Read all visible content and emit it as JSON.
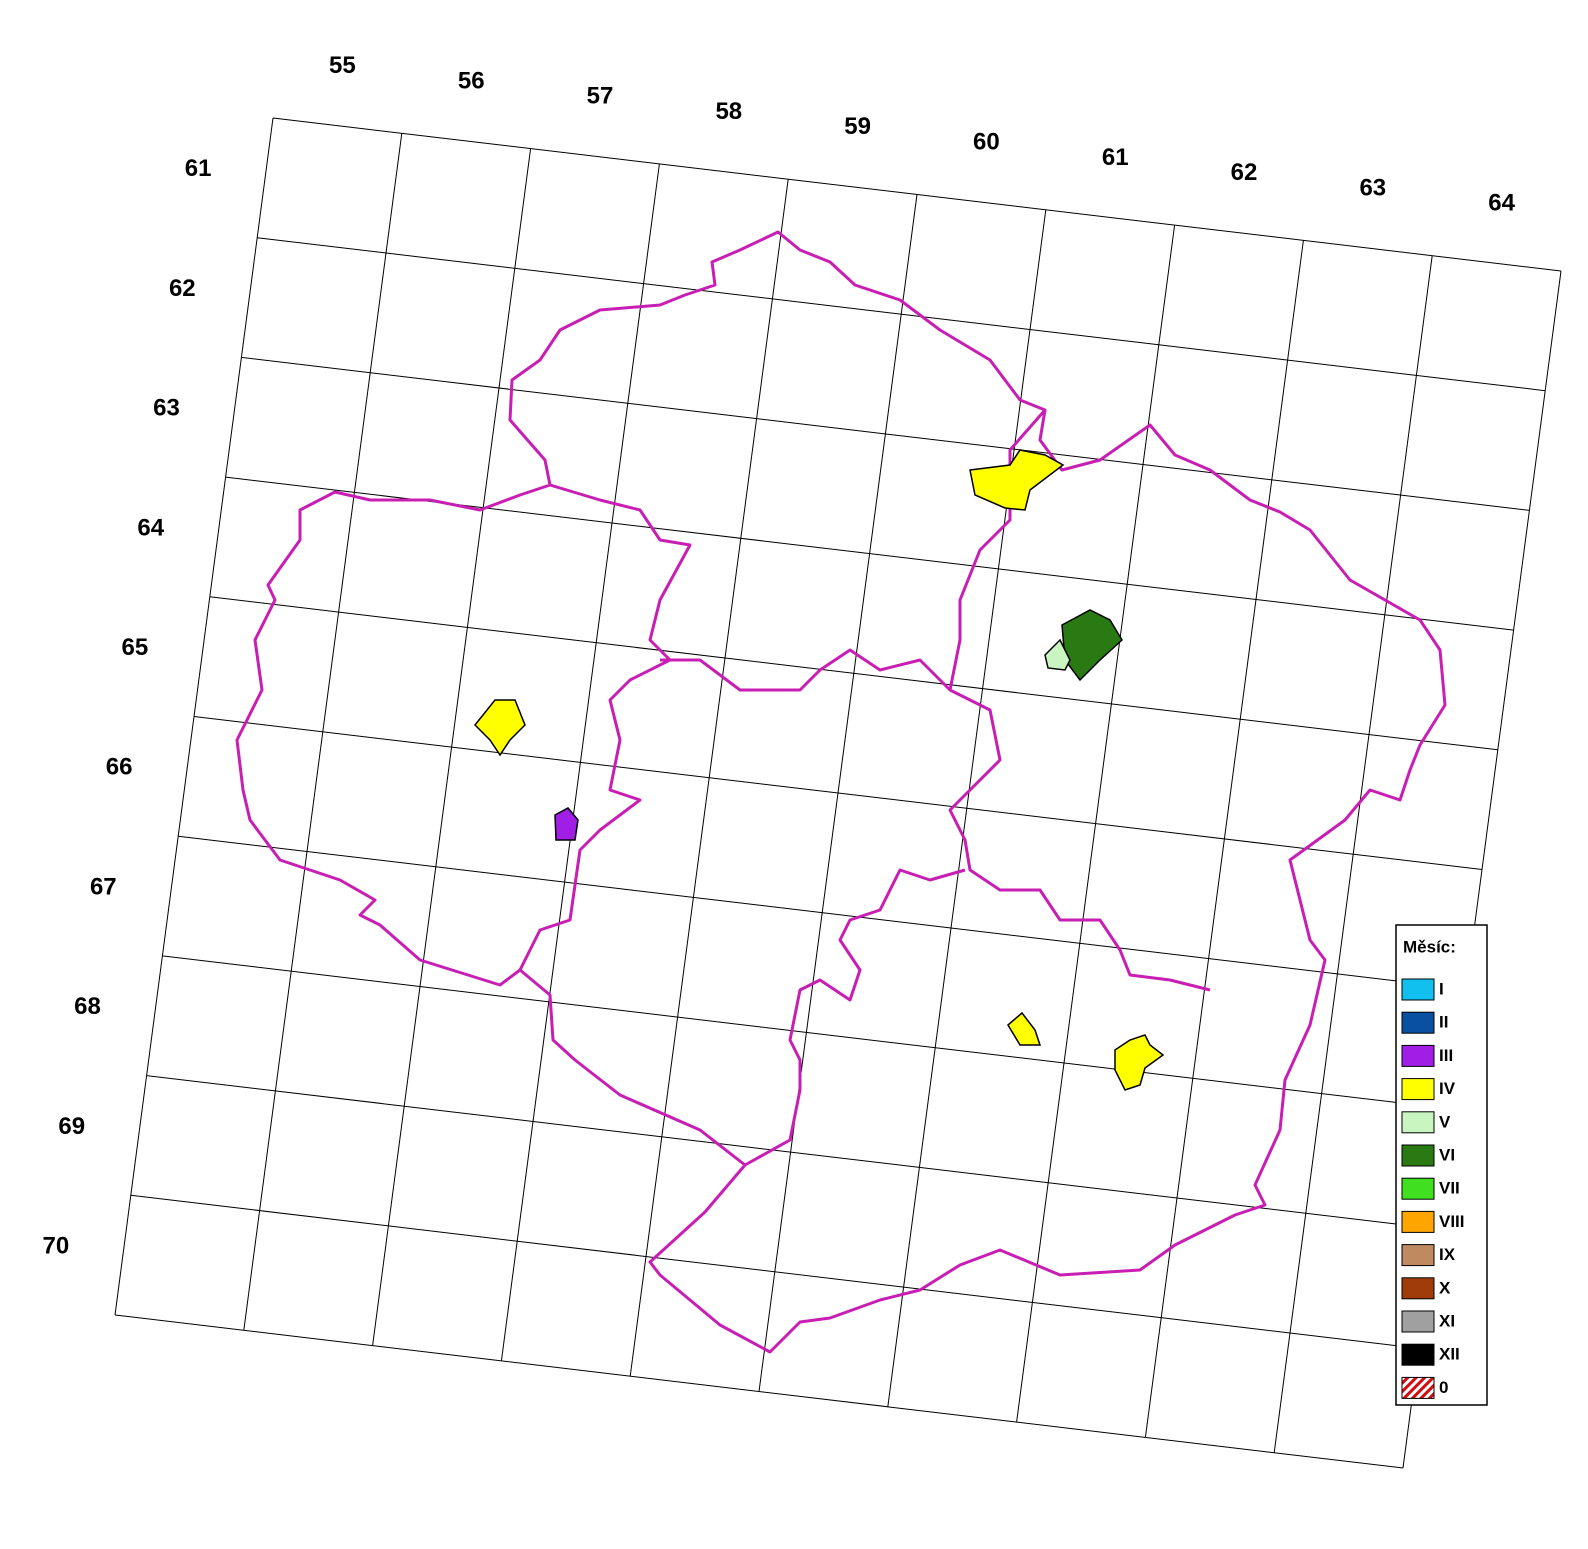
{
  "map": {
    "column_labels": [
      "55",
      "56",
      "57",
      "58",
      "59",
      "60",
      "61",
      "62",
      "63",
      "64"
    ],
    "row_labels": [
      "61",
      "62",
      "63",
      "64",
      "65",
      "66",
      "67",
      "68",
      "69",
      "70"
    ],
    "legend": {
      "title": "Měsíc:",
      "items": [
        {
          "label": "I",
          "color": "#12c0f0"
        },
        {
          "label": "II",
          "color": "#0a50a0"
        },
        {
          "label": "III",
          "color": "#a01ee6"
        },
        {
          "label": "IV",
          "color": "#ffff00"
        },
        {
          "label": "V",
          "color": "#c8f5c0"
        },
        {
          "label": "VI",
          "color": "#2a7a14"
        },
        {
          "label": "VII",
          "color": "#40e020"
        },
        {
          "label": "VIII",
          "color": "#ffa500"
        },
        {
          "label": "IX",
          "color": "#c08a60"
        },
        {
          "label": "X",
          "color": "#a03c0a"
        },
        {
          "label": "XI",
          "color": "#a0a0a0"
        },
        {
          "label": "XII",
          "color": "#000000"
        },
        {
          "label": "0",
          "color": "url(#hatch)"
        }
      ]
    }
  }
}
